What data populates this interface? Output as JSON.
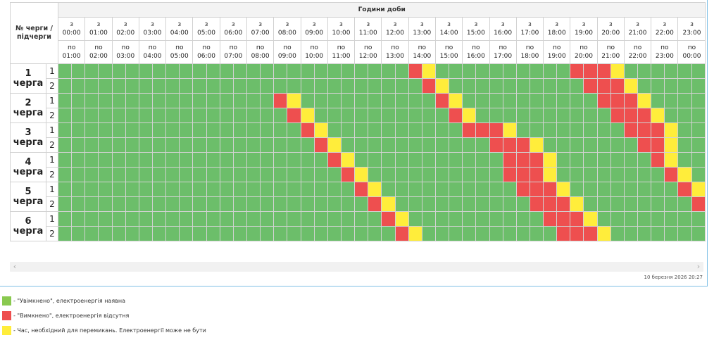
{
  "header": {
    "corner": "№ черги / підчерги",
    "hours_title": "Години доби",
    "from_prefix": "з",
    "to_prefix": "по",
    "from_times": [
      "00:00",
      "01:00",
      "02:00",
      "03:00",
      "04:00",
      "05:00",
      "06:00",
      "07:00",
      "08:00",
      "09:00",
      "10:00",
      "11:00",
      "12:00",
      "13:00",
      "14:00",
      "15:00",
      "16:00",
      "17:00",
      "18:00",
      "19:00",
      "20:00",
      "21:00",
      "22:00",
      "23:00"
    ],
    "to_times": [
      "01:00",
      "02:00",
      "03:00",
      "04:00",
      "05:00",
      "06:00",
      "07:00",
      "08:00",
      "09:00",
      "10:00",
      "11:00",
      "12:00",
      "13:00",
      "14:00",
      "15:00",
      "16:00",
      "17:00",
      "18:00",
      "19:00",
      "20:00",
      "21:00",
      "22:00",
      "23:00",
      "00:00"
    ]
  },
  "queues": [
    {
      "label": "1 черга",
      "subqueues": [
        {
          "label": "1",
          "schedule": "gggggggggggggggggggggggggggggggggggggggggggggggggggggggggggggggggggggggggggggggggggggggggggggggggggggggggg"
        },
        {
          "label": "2",
          "schedule": ""
        }
      ]
    },
    {
      "label": "2 черга",
      "subqueues": [
        {
          "label": "1",
          "schedule": ""
        },
        {
          "label": "2",
          "schedule": ""
        }
      ]
    },
    {
      "label": "3 черга",
      "subqueues": [
        {
          "label": "1",
          "schedule": ""
        },
        {
          "label": "2",
          "schedule": ""
        }
      ]
    },
    {
      "label": "4 черга",
      "subqueues": [
        {
          "label": "1",
          "schedule": ""
        },
        {
          "label": "2",
          "schedule": ""
        }
      ]
    },
    {
      "label": "5 черга",
      "subqueues": [
        {
          "label": "1",
          "schedule": ""
        },
        {
          "label": "2",
          "schedule": ""
        }
      ]
    },
    {
      "label": "6 черга",
      "subqueues": [
        {
          "label": "1",
          "schedule": ""
        },
        {
          "label": "2",
          "schedule": ""
        }
      ]
    }
  ],
  "schedule_grid": [
    "gggggggggggggggggggggggggggrygggggggggggrrry",
    "gggggggggggggggggggggggggggggggggggggggggggg"
  ],
  "legend": [
    {
      "status": "on",
      "color": "#89c94f",
      "text": "- \"Увімкнено\", електроенергія наявна"
    },
    {
      "status": "off",
      "color": "#ee4f4f",
      "text": "- \"Вимкнено\", електроенергія відсутня"
    },
    {
      "status": "maybe",
      "color": "#ffed3b",
      "text": "- Час, необхідний для перемикань. Електроенергії може не бути"
    }
  ],
  "updated_at": "10 березня 2026 20:27",
  "icons": {
    "scroll_left": "chevron-left-icon",
    "scroll_right": "chevron-right-icon"
  }
}
